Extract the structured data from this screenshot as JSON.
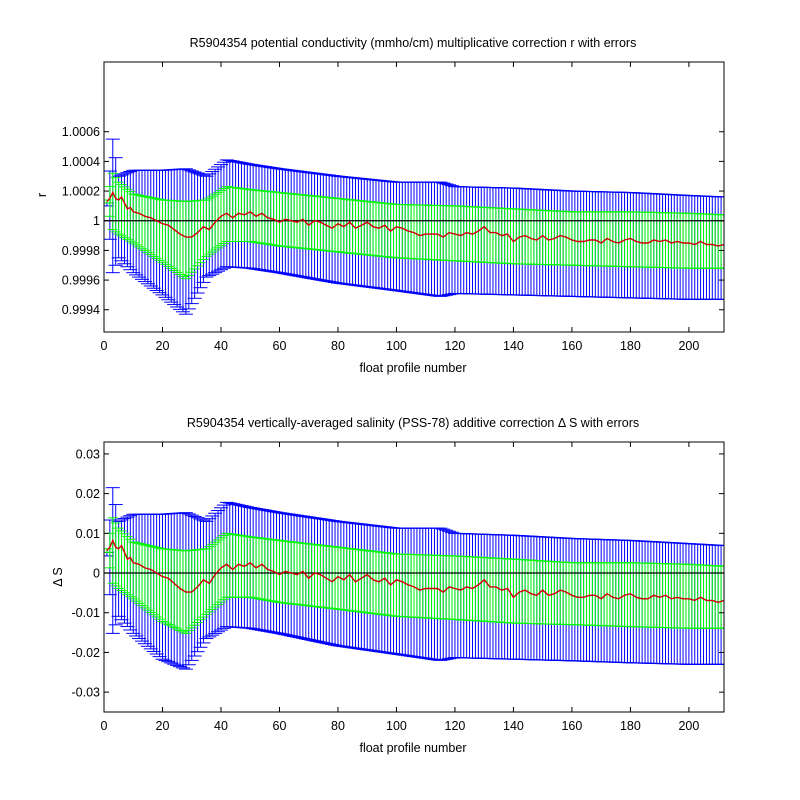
{
  "chart_data": [
    {
      "type": "line",
      "title": "R5904354 potential conductivity (mmho/cm) multiplicative correction r with errors",
      "xlabel": "float profile number",
      "ylabel": "r",
      "xlim": [
        0,
        212
      ],
      "ylim": [
        0.99925,
        1.00107
      ],
      "x_ticks": [
        0,
        20,
        40,
        60,
        80,
        100,
        120,
        140,
        160,
        180,
        200
      ],
      "y_ticks": [
        0.9994,
        0.9996,
        0.9998,
        1,
        1.0002,
        1.0004,
        1.0006
      ],
      "y_tick_labels": [
        "0.9994",
        "0.9996",
        "0.9998",
        "1",
        "1.0002",
        "1.0004",
        "1.0006"
      ],
      "reference_line": 1,
      "grid": false,
      "legend": "none",
      "series": [
        {
          "role": "correction",
          "color": "#d40000",
          "x": [
            1,
            2,
            3,
            4,
            5,
            6,
            7,
            8,
            9,
            10,
            12,
            14,
            16,
            18,
            20,
            22,
            24,
            26,
            28,
            30,
            32,
            34,
            36,
            38,
            40,
            42,
            44,
            46,
            48,
            50,
            52,
            54,
            56,
            58,
            60,
            62,
            64,
            66,
            68,
            70,
            72,
            74,
            76,
            78,
            80,
            82,
            84,
            86,
            88,
            90,
            92,
            94,
            96,
            98,
            100,
            102,
            104,
            106,
            108,
            110,
            112,
            114,
            116,
            118,
            120,
            122,
            124,
            126,
            128,
            130,
            132,
            134,
            136,
            138,
            140,
            142,
            144,
            146,
            148,
            150,
            152,
            154,
            156,
            158,
            160,
            162,
            164,
            166,
            168,
            170,
            172,
            174,
            176,
            178,
            180,
            182,
            184,
            186,
            188,
            190,
            192,
            194,
            196,
            198,
            200,
            202,
            204,
            206,
            208,
            210,
            212
          ],
          "y": [
            1.00013,
            1.00015,
            1.00019,
            1.00015,
            1.00014,
            1.00016,
            1.00012,
            1.00008,
            1.00009,
            1.00006,
            1.00005,
            1.00003,
            1.00002,
            1.0,
            0.99998,
            0.99997,
            0.99994,
            0.99991,
            0.99989,
            0.99989,
            0.99992,
            0.99996,
            0.99994,
            0.99999,
            1.00003,
            1.00005,
            1.00002,
            1.00005,
            1.00004,
            1.00006,
            1.00003,
            1.00005,
            1.00002,
            1.00001,
            0.99999,
            1.00001,
            1.0,
            0.99999,
            1.00001,
            0.99997,
            1.0,
            0.99999,
            0.99997,
            0.99995,
            0.99998,
            0.99996,
            0.99999,
            0.99995,
            0.99997,
            0.99999,
            0.99996,
            0.99995,
            0.99997,
            0.99993,
            0.99996,
            0.99995,
            0.99993,
            0.99992,
            0.9999,
            0.99991,
            0.99991,
            0.99991,
            0.99989,
            0.99992,
            0.99991,
            0.9999,
            0.99992,
            0.99991,
            0.99993,
            0.99996,
            0.99992,
            0.99992,
            0.9999,
            0.99991,
            0.99986,
            0.99989,
            0.9999,
            0.99988,
            0.99987,
            0.9999,
            0.99987,
            0.99988,
            0.9999,
            0.99989,
            0.99987,
            0.99986,
            0.99986,
            0.99987,
            0.99987,
            0.99985,
            0.99988,
            0.99986,
            0.99985,
            0.99987,
            0.99988,
            0.99986,
            0.99985,
            0.99985,
            0.99987,
            0.99986,
            0.99987,
            0.99985,
            0.99986,
            0.99985,
            0.99985,
            0.99984,
            0.99986,
            0.99984,
            0.99984,
            0.99983,
            0.99984
          ]
        },
        {
          "role": "total_error_band",
          "color": "#0000ff",
          "x": [
            1,
            3,
            5,
            10,
            20,
            28,
            35,
            42,
            50,
            60,
            80,
            100,
            115,
            120,
            140,
            160,
            180,
            200,
            212
          ],
          "upper": [
            1.00012,
            1.00055,
            1.0003,
            1.00034,
            1.00034,
            1.00035,
            1.0003,
            1.00041,
            1.00038,
            1.00035,
            1.0003,
            1.00026,
            1.00026,
            1.00023,
            1.00022,
            1.0002,
            1.00019,
            1.00017,
            1.00016
          ],
          "lower": [
            1.0001,
            0.99965,
            0.99975,
            0.99965,
            0.9995,
            0.99937,
            0.99962,
            0.99969,
            0.99968,
            0.99965,
            0.99958,
            0.99953,
            0.99949,
            0.99951,
            0.9995,
            0.99949,
            0.99948,
            0.99947,
            0.99947
          ]
        },
        {
          "role": "inner_error_band",
          "color": "#00ff00",
          "x": [
            1,
            3,
            5,
            10,
            20,
            28,
            35,
            42,
            50,
            60,
            80,
            100,
            120,
            140,
            160,
            180,
            200,
            212
          ],
          "upper": [
            1.00014,
            1.00032,
            1.00026,
            1.00018,
            1.00014,
            1.00013,
            1.00014,
            1.00023,
            1.00021,
            1.00019,
            1.00015,
            1.00011,
            1.0001,
            1.00008,
            1.00006,
            1.00006,
            1.00005,
            1.00004
          ],
          "lower": [
            1.00012,
            0.99994,
            0.99991,
            0.99985,
            0.99972,
            0.99961,
            0.99976,
            0.99986,
            0.99986,
            0.99983,
            0.99979,
            0.99975,
            0.99973,
            0.99971,
            0.9997,
            0.99969,
            0.99968,
            0.99968
          ]
        }
      ]
    },
    {
      "type": "line",
      "title": "R5904354 vertically-averaged salinity (PSS-78) additive correction Δ S with errors",
      "xlabel": "float profile number",
      "ylabel": "Δ S",
      "xlim": [
        0,
        212
      ],
      "ylim": [
        -0.035,
        0.033
      ],
      "x_ticks": [
        0,
        20,
        40,
        60,
        80,
        100,
        120,
        140,
        160,
        180,
        200
      ],
      "y_ticks": [
        -0.03,
        -0.02,
        -0.01,
        0,
        0.01,
        0.02,
        0.03
      ],
      "y_tick_labels": [
        "-0.03",
        "-0.02",
        "-0.01",
        "0",
        "0.01",
        "0.02",
        "0.03"
      ],
      "reference_line": 0,
      "grid": false,
      "legend": "none",
      "series": [
        {
          "role": "correction",
          "color": "#d40000",
          "x": [
            1,
            2,
            3,
            4,
            5,
            6,
            7,
            8,
            9,
            10,
            12,
            14,
            16,
            18,
            20,
            22,
            24,
            26,
            28,
            30,
            32,
            34,
            36,
            38,
            40,
            42,
            44,
            46,
            48,
            50,
            52,
            54,
            56,
            58,
            60,
            62,
            64,
            66,
            68,
            70,
            72,
            74,
            76,
            78,
            80,
            82,
            84,
            86,
            88,
            90,
            92,
            94,
            96,
            98,
            100,
            102,
            104,
            106,
            108,
            110,
            112,
            114,
            116,
            118,
            120,
            122,
            124,
            126,
            128,
            130,
            132,
            134,
            136,
            138,
            140,
            142,
            144,
            146,
            148,
            150,
            152,
            154,
            156,
            158,
            160,
            162,
            164,
            166,
            168,
            170,
            172,
            174,
            176,
            178,
            180,
            182,
            184,
            186,
            188,
            190,
            192,
            194,
            196,
            198,
            200,
            202,
            204,
            206,
            208,
            210,
            212
          ],
          "y": [
            0.0056,
            0.0065,
            0.0082,
            0.0065,
            0.0061,
            0.0069,
            0.0052,
            0.0035,
            0.0039,
            0.0026,
            0.0022,
            0.0013,
            0.0009,
            0.0,
            -0.0009,
            -0.0013,
            -0.0026,
            -0.0039,
            -0.0048,
            -0.0048,
            -0.0035,
            -0.0017,
            -0.0026,
            -0.0004,
            0.0013,
            0.0022,
            0.0009,
            0.0022,
            0.0017,
            0.0026,
            0.0013,
            0.0022,
            0.0009,
            0.0004,
            -0.0004,
            0.0004,
            0.0,
            -0.0004,
            0.0004,
            -0.0013,
            0.0,
            -0.0004,
            -0.0013,
            -0.0022,
            -0.0009,
            -0.0017,
            -0.0004,
            -0.0022,
            -0.0013,
            -0.0004,
            -0.0017,
            -0.0022,
            -0.0013,
            -0.003,
            -0.0017,
            -0.0022,
            -0.003,
            -0.0035,
            -0.0043,
            -0.0039,
            -0.0039,
            -0.0039,
            -0.0048,
            -0.0035,
            -0.0039,
            -0.0043,
            -0.0035,
            -0.0039,
            -0.003,
            -0.0017,
            -0.0035,
            -0.0035,
            -0.0043,
            -0.0039,
            -0.0061,
            -0.0048,
            -0.0043,
            -0.0052,
            -0.0056,
            -0.0043,
            -0.0056,
            -0.0052,
            -0.0043,
            -0.0048,
            -0.0056,
            -0.0061,
            -0.0061,
            -0.0056,
            -0.0056,
            -0.0065,
            -0.0052,
            -0.0061,
            -0.0065,
            -0.0056,
            -0.0052,
            -0.0061,
            -0.0065,
            -0.0065,
            -0.0056,
            -0.0061,
            -0.0056,
            -0.0065,
            -0.0061,
            -0.0065,
            -0.0065,
            -0.0069,
            -0.0061,
            -0.0069,
            -0.0069,
            -0.0074,
            -0.0069
          ]
        },
        {
          "role": "total_error_band",
          "color": "#0000ff",
          "x": [
            1,
            3,
            5,
            10,
            20,
            28,
            35,
            42,
            50,
            60,
            80,
            100,
            115,
            120,
            140,
            160,
            180,
            200,
            212
          ],
          "upper": [
            0.0052,
            0.0215,
            0.013,
            0.0148,
            0.0148,
            0.0152,
            0.013,
            0.0178,
            0.0165,
            0.0152,
            0.013,
            0.0113,
            0.0113,
            0.01,
            0.0095,
            0.0087,
            0.0082,
            0.0074,
            0.0069
          ],
          "lower": [
            0.0043,
            -0.0152,
            -0.0109,
            -0.0152,
            -0.0217,
            -0.0242,
            -0.0165,
            -0.0135,
            -0.0139,
            -0.0152,
            -0.0183,
            -0.0204,
            -0.022,
            -0.0213,
            -0.0217,
            -0.0221,
            -0.0226,
            -0.023,
            -0.023
          ]
        },
        {
          "role": "inner_error_band",
          "color": "#00ff00",
          "x": [
            1,
            3,
            5,
            10,
            20,
            28,
            35,
            42,
            50,
            60,
            80,
            100,
            120,
            140,
            160,
            180,
            200,
            212
          ],
          "upper": [
            0.0061,
            0.0139,
            0.0113,
            0.0078,
            0.0061,
            0.0056,
            0.0061,
            0.01,
            0.0091,
            0.0082,
            0.0065,
            0.0048,
            0.0043,
            0.0035,
            0.0026,
            0.0026,
            0.0022,
            0.0017
          ],
          "lower": [
            0.0052,
            -0.0026,
            -0.0039,
            -0.0065,
            -0.0122,
            -0.0152,
            -0.0104,
            -0.0061,
            -0.0061,
            -0.0074,
            -0.0091,
            -0.0109,
            -0.0117,
            -0.0126,
            -0.013,
            -0.0135,
            -0.0139,
            -0.0139
          ]
        }
      ]
    }
  ]
}
